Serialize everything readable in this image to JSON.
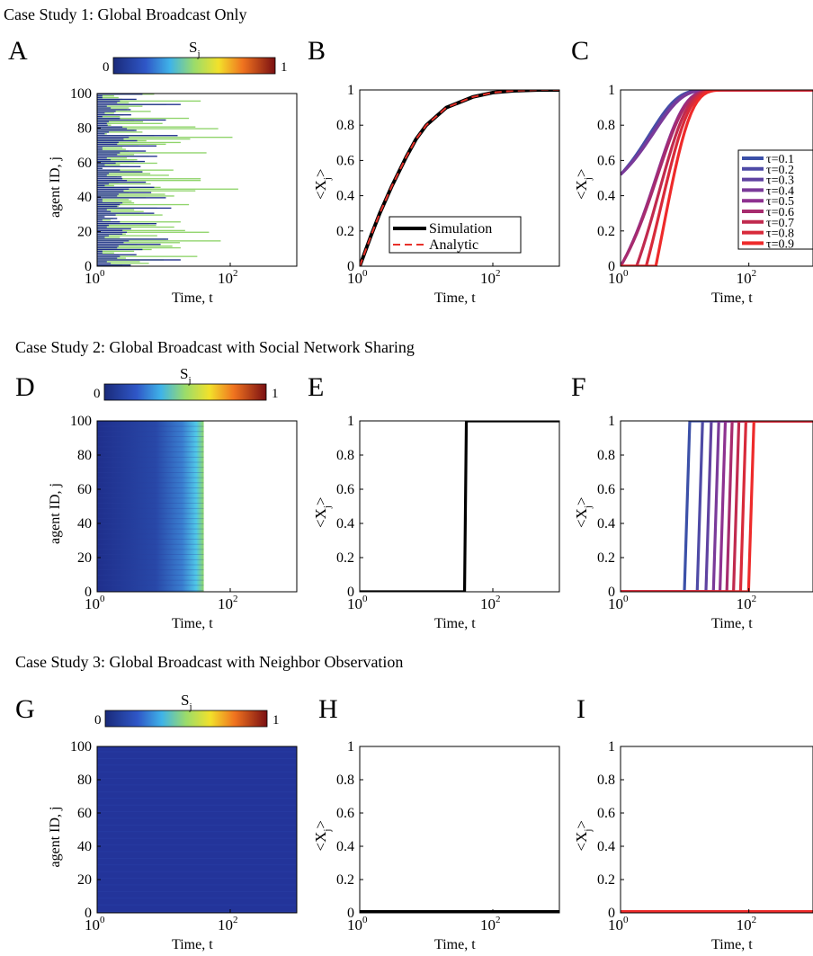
{
  "figure": {
    "case_titles": [
      "Case Study 1: Global Broadcast Only",
      "Case Study 2: Global Broadcast with Social Network Sharing",
      "Case Study 3: Global Broadcast with Neighbor Observation"
    ],
    "colorbar": {
      "title": "S",
      "title_sub": "j",
      "min_label": "0",
      "max_label": "1"
    },
    "panel_letters": [
      "A",
      "B",
      "C",
      "D",
      "E",
      "F",
      "G",
      "H",
      "I"
    ],
    "xlabel": "Time, t",
    "xtick_base": "10",
    "xtick_exponents": [
      "0",
      "2"
    ],
    "heatmap_ylabel": "agent ID, j",
    "line_ylabel": {
      "open": "<X",
      "sub": "j",
      "close": ">"
    },
    "heatmap_yticks": [
      "0",
      "20",
      "40",
      "60",
      "80",
      "100"
    ],
    "line_yticks": [
      "0",
      "0.2",
      "0.4",
      "0.6",
      "0.8",
      "1"
    ]
  },
  "chart_data": [
    {
      "panel": "A",
      "type": "heatmap",
      "description_of_axes": "agents vs time, colored by S_j",
      "x_scale": "log",
      "xlim": [
        1,
        1000
      ],
      "ylim": [
        0,
        100
      ],
      "colorscale": "jet",
      "xlabel": "Time, t",
      "ylabel": "agent ID, j",
      "colors": {
        "low": "#1f2f8c",
        "mid": "#8fd46a"
      },
      "cell_profile": {
        "bars": [
          [
            1.2,
            1.8
          ],
          [
            2,
            3
          ],
          [
            1.5,
            8
          ],
          [
            1.3,
            4
          ],
          [
            2.5,
            25
          ],
          [
            1.2,
            2
          ],
          [
            1.8,
            6
          ],
          [
            1.4,
            12
          ],
          [
            2.2,
            40
          ],
          [
            1.1,
            3
          ],
          [
            1.6,
            5
          ],
          [
            3,
            120
          ],
          [
            1.3,
            2.5
          ],
          [
            2,
            18
          ],
          [
            1.5,
            7
          ],
          [
            1.2,
            3
          ],
          [
            2.8,
            60
          ],
          [
            1.4,
            4
          ],
          [
            1.7,
            9
          ],
          [
            1.3,
            2
          ],
          [
            2.1,
            15
          ],
          [
            1.5,
            6
          ],
          [
            1.2,
            3
          ],
          [
            2.4,
            30
          ],
          [
            1.6,
            10
          ],
          [
            1.3,
            2
          ],
          [
            1.9,
            8
          ],
          [
            1.4,
            5
          ],
          [
            2.2,
            20
          ],
          [
            1.2,
            3
          ]
        ]
      }
    },
    {
      "panel": "B",
      "type": "line",
      "x_scale": "log",
      "xlim": [
        1,
        1000
      ],
      "ylim": [
        0,
        1
      ],
      "xlabel": "Time, t",
      "ylabel": "<X_j>",
      "legend_position": "bottom-right",
      "series": [
        {
          "name": "Simulation",
          "color": "#000000",
          "style": "solid",
          "x": [
            1,
            1.5,
            2,
            3,
            5,
            7,
            10,
            20,
            50,
            100,
            200,
            500,
            1000
          ],
          "values": [
            0,
            0.18,
            0.3,
            0.45,
            0.62,
            0.72,
            0.8,
            0.9,
            0.96,
            0.985,
            0.995,
            1,
            1
          ]
        },
        {
          "name": "Analytic",
          "color": "#e8312a",
          "style": "dashed",
          "x": [
            1,
            1.5,
            2,
            3,
            5,
            7,
            10,
            20,
            50,
            100,
            200,
            500,
            1000
          ],
          "values": [
            0,
            0.18,
            0.3,
            0.45,
            0.62,
            0.72,
            0.8,
            0.9,
            0.96,
            0.985,
            0.995,
            1,
            1
          ]
        }
      ]
    },
    {
      "panel": "C",
      "type": "line",
      "x_scale": "log",
      "xlim": [
        1,
        1000
      ],
      "ylim": [
        0,
        1
      ],
      "xlabel": "Time, t",
      "ylabel": "<X_j>",
      "legend_position": "right",
      "series": [
        {
          "name": "τ=0.1",
          "color": "#3b50a8",
          "x0": 1,
          "y0": 0.52,
          "shift": 0
        },
        {
          "name": "τ=0.2",
          "color": "#4e4aa6",
          "x0": 1,
          "y0": 0.52,
          "shift": 0
        },
        {
          "name": "τ=0.3",
          "color": "#5f42a0",
          "x0": 1,
          "y0": 0.52,
          "shift": 0
        },
        {
          "name": "τ=0.4",
          "color": "#7a3a99",
          "x0": 1,
          "y0": 0.52,
          "shift": 0
        },
        {
          "name": "τ=0.5",
          "color": "#8e3290",
          "x0": 1,
          "y0": 0.0,
          "shift": 0.0
        },
        {
          "name": "τ=0.6",
          "color": "#a72b6e",
          "x0": 1,
          "y0": 0.0,
          "shift": 0.0
        },
        {
          "name": "τ=0.7",
          "color": "#c12a4e",
          "x0": 1,
          "y0": 0.0,
          "shift": 0.25
        },
        {
          "name": "τ=0.8",
          "color": "#d82a3a",
          "x0": 1,
          "y0": 0.0,
          "shift": 0.4
        },
        {
          "name": "τ=0.9",
          "color": "#ee2a2a",
          "x0": 1,
          "y0": 0.0,
          "shift": 0.55
        }
      ]
    },
    {
      "panel": "D",
      "type": "heatmap",
      "x_scale": "log",
      "xlim": [
        1,
        1000
      ],
      "ylim": [
        0,
        100
      ],
      "xlabel": "Time, t",
      "ylabel": "agent ID, j",
      "colorscale": "jet",
      "filled_until": 40
    },
    {
      "panel": "E",
      "type": "line",
      "x_scale": "log",
      "xlim": [
        1,
        1000
      ],
      "ylim": [
        0,
        1
      ],
      "xlabel": "Time, t",
      "ylabel": "<X_j>",
      "series": [
        {
          "color": "#000000",
          "step_at": 40
        }
      ]
    },
    {
      "panel": "F",
      "type": "line",
      "x_scale": "log",
      "xlim": [
        1,
        1000
      ],
      "ylim": [
        0,
        1
      ],
      "xlabel": "Time, t",
      "ylabel": "<X_j>",
      "series": [
        {
          "color": "#3b50a8",
          "step_at": 12
        },
        {
          "color": "#4e4aa6",
          "step_at": 19
        },
        {
          "color": "#5f42a0",
          "step_at": 26
        },
        {
          "color": "#7a3a99",
          "step_at": 34
        },
        {
          "color": "#8e3290",
          "step_at": 43
        },
        {
          "color": "#a72b6e",
          "step_at": 55
        },
        {
          "color": "#c12a4e",
          "step_at": 70
        },
        {
          "color": "#d82a3a",
          "step_at": 90
        },
        {
          "color": "#ee2a2a",
          "step_at": 120
        }
      ]
    },
    {
      "panel": "G",
      "type": "heatmap",
      "x_scale": "log",
      "xlim": [
        1,
        1000
      ],
      "ylim": [
        0,
        100
      ],
      "xlabel": "Time, t",
      "ylabel": "agent ID, j",
      "colorscale": "jet",
      "filled_until": 1000
    },
    {
      "panel": "H",
      "type": "line",
      "x_scale": "log",
      "xlim": [
        1,
        1000
      ],
      "ylim": [
        0,
        1
      ],
      "xlabel": "Time, t",
      "ylabel": "<X_j>",
      "series": [
        {
          "color": "#000000",
          "constant": 0
        }
      ]
    },
    {
      "panel": "I",
      "type": "line",
      "x_scale": "log",
      "xlim": [
        1,
        1000
      ],
      "ylim": [
        0,
        1
      ],
      "xlabel": "Time, t",
      "ylabel": "<X_j>",
      "series": [
        {
          "color": "#ee2a2a",
          "constant": 0
        }
      ]
    }
  ]
}
